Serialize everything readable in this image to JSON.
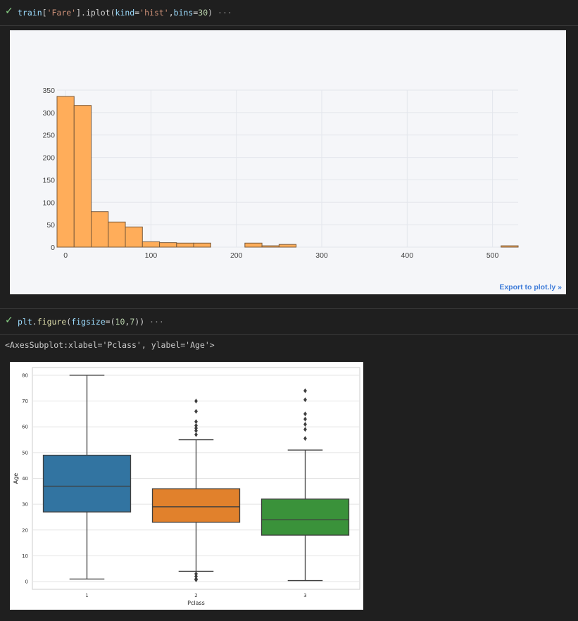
{
  "cells": [
    {
      "status_icon": "check-icon",
      "code_tokens": [
        {
          "t": "train",
          "c": "tk-var"
        },
        {
          "t": "[",
          "c": "tk-p"
        },
        {
          "t": "'Fare'",
          "c": "tk-str"
        },
        {
          "t": "].",
          "c": "tk-p"
        },
        {
          "t": "iplot",
          "c": "tk-p"
        },
        {
          "t": "(",
          "c": "tk-p"
        },
        {
          "t": "kind",
          "c": "tk-var"
        },
        {
          "t": "=",
          "c": "tk-p"
        },
        {
          "t": "'hist'",
          "c": "tk-str"
        },
        {
          "t": ",",
          "c": "tk-p"
        },
        {
          "t": "bins",
          "c": "tk-var"
        },
        {
          "t": "=",
          "c": "tk-p"
        },
        {
          "t": "30",
          "c": "tk-num"
        },
        {
          "t": ")",
          "c": "tk-p"
        },
        {
          "t": " ···",
          "c": "tk-dim"
        }
      ]
    },
    {
      "status_icon": "check-icon",
      "code_tokens": [
        {
          "t": "plt",
          "c": "tk-var"
        },
        {
          "t": ".",
          "c": "tk-p"
        },
        {
          "t": "figure",
          "c": "tk-fn"
        },
        {
          "t": "(",
          "c": "tk-p"
        },
        {
          "t": "figsize",
          "c": "tk-var"
        },
        {
          "t": "=(",
          "c": "tk-p"
        },
        {
          "t": "10",
          "c": "tk-num"
        },
        {
          "t": ",",
          "c": "tk-p"
        },
        {
          "t": "7",
          "c": "tk-num"
        },
        {
          "t": "))",
          "c": "tk-p"
        },
        {
          "t": " ···",
          "c": "tk-dim"
        }
      ]
    }
  ],
  "cell2_repr": "<AxesSubplot:xlabel='Pclass', ylabel='Age'>",
  "export_link": "Export to plot.ly »",
  "colors": {
    "hist_fill": "#ffad5a",
    "hist_edge": "#7a5a3a",
    "box": [
      "#3274a1",
      "#e1812c",
      "#3a923a"
    ]
  },
  "chart_data": [
    {
      "type": "bar",
      "title": "",
      "xlabel": "",
      "ylabel": "",
      "xlim": [
        -10,
        530
      ],
      "ylim": [
        0,
        350
      ],
      "xticks": [
        0,
        100,
        200,
        300,
        400,
        500
      ],
      "yticks": [
        0,
        50,
        100,
        150,
        200,
        250,
        300,
        350
      ],
      "bin_width": 20,
      "bins": [
        {
          "x0": -10,
          "count": 336
        },
        {
          "x0": 10,
          "count": 316
        },
        {
          "x0": 30,
          "count": 79
        },
        {
          "x0": 50,
          "count": 56
        },
        {
          "x0": 70,
          "count": 45
        },
        {
          "x0": 90,
          "count": 12
        },
        {
          "x0": 110,
          "count": 10
        },
        {
          "x0": 130,
          "count": 9
        },
        {
          "x0": 150,
          "count": 9
        },
        {
          "x0": 210,
          "count": 9
        },
        {
          "x0": 230,
          "count": 3
        },
        {
          "x0": 250,
          "count": 6
        },
        {
          "x0": 510,
          "count": 3
        }
      ],
      "grid": true
    },
    {
      "type": "box",
      "title": "",
      "xlabel": "Pclass",
      "ylabel": "Age",
      "categories": [
        "1",
        "2",
        "3"
      ],
      "ylim": [
        -3,
        83
      ],
      "yticks": [
        0,
        10,
        20,
        30,
        40,
        50,
        60,
        70,
        80
      ],
      "boxes": [
        {
          "category": "1",
          "whisker_low": 1,
          "q1": 27,
          "median": 37,
          "q3": 49,
          "whisker_high": 80,
          "outliers": []
        },
        {
          "category": "2",
          "whisker_low": 4,
          "q1": 23,
          "median": 29,
          "q3": 36,
          "whisker_high": 55,
          "outliers": [
            0.7,
            0.9,
            1,
            2,
            3,
            57,
            58.5,
            59.5,
            60.5,
            62,
            66,
            70
          ]
        },
        {
          "category": "3",
          "whisker_low": 0.4,
          "q1": 18,
          "median": 24,
          "q3": 32,
          "whisker_high": 51,
          "outliers": [
            55.5,
            59,
            61,
            63,
            65,
            70.5,
            74
          ]
        }
      ],
      "grid": true
    }
  ]
}
